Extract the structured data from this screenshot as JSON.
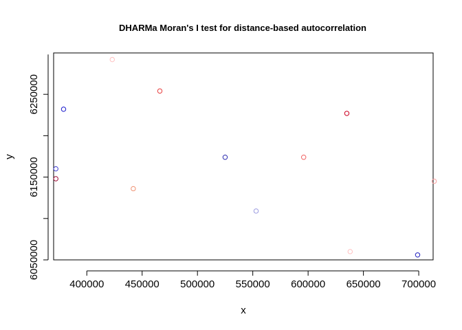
{
  "chart_data": {
    "type": "scatter",
    "title": "DHARMa Moran's I test for distance-based autocorrelation",
    "xlabel": "x",
    "ylabel": "y",
    "xlim": [
      370000,
      713000
    ],
    "ylim": [
      6050000,
      6300000
    ],
    "x_ticks": [
      400000,
      450000,
      500000,
      550000,
      600000,
      650000,
      700000
    ],
    "x_tick_labels": [
      "400000",
      "450000",
      "500000",
      "550000",
      "600000",
      "650000",
      "700000"
    ],
    "y_ticks": [
      6050000,
      6150000,
      6250000
    ],
    "y_tick_labels": [
      "6050000",
      "6150000",
      "6250000"
    ],
    "grid": false,
    "points": [
      {
        "x": 423000,
        "y": 6292000,
        "color": "#ffc0c0"
      },
      {
        "x": 466000,
        "y": 6254000,
        "color": "#e84040"
      },
      {
        "x": 379000,
        "y": 6232000,
        "color": "#1a1acc"
      },
      {
        "x": 635000,
        "y": 6227000,
        "color": "#cc0022"
      },
      {
        "x": 525000,
        "y": 6174000,
        "color": "#2a2ab0"
      },
      {
        "x": 596000,
        "y": 6174000,
        "color": "#f06060"
      },
      {
        "x": 372000,
        "y": 6160000,
        "color": "#3a3ad0"
      },
      {
        "x": 372000,
        "y": 6148000,
        "color": "#a0103a"
      },
      {
        "x": 714000,
        "y": 6145000,
        "color": "#f8a0a0"
      },
      {
        "x": 442000,
        "y": 6136000,
        "color": "#f09070"
      },
      {
        "x": 553000,
        "y": 6109000,
        "color": "#9a9ae0"
      },
      {
        "x": 638000,
        "y": 6060000,
        "color": "#ffc0c0"
      },
      {
        "x": 699000,
        "y": 6056000,
        "color": "#2020c0"
      }
    ]
  }
}
